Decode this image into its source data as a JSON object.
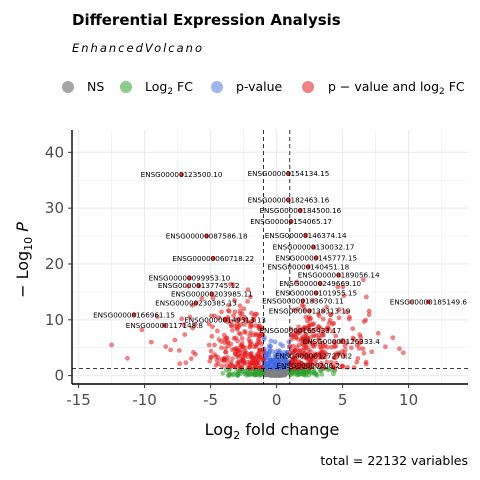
{
  "chart_data": {
    "type": "scatter",
    "title": "Differential Expression Analysis",
    "subtitle": "EnhancedVolcano",
    "xlabel": "Log2 fold change",
    "ylabel": "-Log10 P",
    "xlim": [
      -15.5,
      14.5
    ],
    "ylim": [
      -1.5,
      44
    ],
    "xticks": [
      -15,
      -10,
      -5,
      0,
      5,
      10
    ],
    "yticks": [
      0,
      10,
      20,
      30,
      40
    ],
    "xtick_labels": [
      "-15",
      "-10",
      "-5",
      "0",
      "5",
      "10"
    ],
    "ytick_labels": [
      "0",
      "10",
      "20",
      "30",
      "40"
    ],
    "grid": true,
    "legend_position": "top",
    "legend": [
      "NS",
      "Log2 FC",
      "p-value",
      "p - value and log2 FC"
    ],
    "series": [
      {
        "name": "NS",
        "color": "#7f7f7f"
      },
      {
        "name": "Log2 FC",
        "color": "#2ca02c"
      },
      {
        "name": "p-value",
        "color": "#4169e1"
      },
      {
        "name": "p - value and log2 FC",
        "color": "#e41a1c"
      }
    ],
    "cutoffs": {
      "log2fc": [
        -1,
        1
      ],
      "pvalue_log10": 1.3
    },
    "caption": "total = 22132 variables",
    "labeled_points": [
      {
        "label": "ENSG00000154134.15",
        "x": 0.9,
        "y": 36.2
      },
      {
        "label": "ENSG00000123500.10",
        "x": -7.2,
        "y": 36.0
      },
      {
        "label": "ENSG00000182463.16",
        "x": 0.9,
        "y": 31.5
      },
      {
        "label": "ENSG00000184500.16",
        "x": 1.8,
        "y": 29.6
      },
      {
        "label": "ENSG00000154065.17",
        "x": 1.1,
        "y": 27.6
      },
      {
        "label": "ENSG00000087586.18",
        "x": -5.3,
        "y": 25.0
      },
      {
        "label": "ENSG00000146374.14",
        "x": 2.2,
        "y": 25.1
      },
      {
        "label": "ENSG00000130032.17",
        "x": 2.8,
        "y": 23.0
      },
      {
        "label": "ENSG00000060718.22",
        "x": -4.8,
        "y": 21.0
      },
      {
        "label": "ENSG00000145777.15",
        "x": 3.0,
        "y": 21.1
      },
      {
        "label": "ENSG00000140451.18",
        "x": 2.4,
        "y": 19.5
      },
      {
        "label": "ENSG00000189056.14",
        "x": 4.7,
        "y": 18.0
      },
      {
        "label": "ENSG00000099953.10",
        "x": -6.6,
        "y": 17.5
      },
      {
        "label": "ENSG00000249669.10",
        "x": 3.3,
        "y": 16.5
      },
      {
        "label": "ENSG00000137745.12",
        "x": -5.9,
        "y": 16.1
      },
      {
        "label": "ENSG00000101955.15",
        "x": 3.0,
        "y": 14.8
      },
      {
        "label": "ENSG00000203985.11",
        "x": -4.9,
        "y": 14.6
      },
      {
        "label": "ENSG00000185149.6",
        "x": 11.5,
        "y": 13.2
      },
      {
        "label": "ENSG00000183670.11",
        "x": 2.0,
        "y": 13.4
      },
      {
        "label": "ENSG00000230385.13",
        "x": -6.1,
        "y": 13.0
      },
      {
        "label": "ENSG00000166961.15",
        "x": -10.8,
        "y": 10.9
      },
      {
        "label": "ENSG00000117148.8",
        "x": -8.5,
        "y": 9.0
      },
      {
        "label": "ENSG00000138313.19",
        "x": 2.5,
        "y": 11.6
      },
      {
        "label": "ENSG00000149313.13",
        "x": -3.9,
        "y": 10.0
      },
      {
        "label": "ENSG00000165433.17",
        "x": 1.8,
        "y": 8.1
      },
      {
        "label": "ENSG00000126333.4",
        "x": 4.9,
        "y": 6.1
      },
      {
        "label": "ENSG00000127270.2",
        "x": 2.8,
        "y": 3.5
      },
      {
        "label": "ENSG00000206.2",
        "x": 2.4,
        "y": 1.8
      }
    ]
  }
}
